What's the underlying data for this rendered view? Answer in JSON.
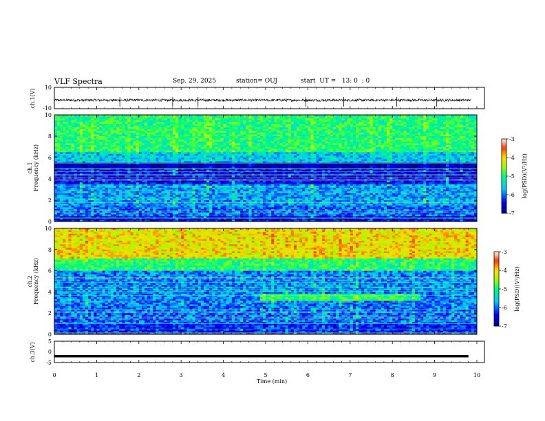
{
  "header": {
    "title": "VLF Spectra",
    "date": "Sep. 29, 2025",
    "station": "station= OUJ",
    "start": "start  UT =   13: 0  : 0"
  },
  "chart_data": [
    {
      "type": "line",
      "panel": "ch1-waveform",
      "ylabel": "ch.1(V)",
      "ylim": [
        -10,
        10
      ],
      "yticks": [
        "10",
        "-10"
      ],
      "baseline": -2,
      "noise_amplitude": 0.6,
      "spike_times": [
        1.55,
        2.8,
        3.4,
        5.95,
        6.85,
        8.1,
        9.05
      ]
    },
    {
      "type": "heatmap",
      "panel": "ch1-spectrogram",
      "ylabel": "ch.1\nFrequency (kHz)",
      "ylabel_line1": "ch.1",
      "ylabel_line2": "Frequency (kHz)",
      "ylim": [
        0,
        10
      ],
      "yticks": [
        "0",
        "2",
        "4",
        "6",
        "8",
        "10"
      ],
      "xlim": [
        0,
        10
      ],
      "log_psd_bands": [
        {
          "f_from": 0.0,
          "f_to": 0.5,
          "level": -6.5
        },
        {
          "f_from": 0.5,
          "f_to": 1.5,
          "level": -6.0
        },
        {
          "f_from": 1.5,
          "f_to": 3.5,
          "level": -5.8
        },
        {
          "f_from": 3.5,
          "f_to": 5.0,
          "level": -6.4
        },
        {
          "f_from": 5.0,
          "f_to": 5.5,
          "level": -6.8
        },
        {
          "f_from": 5.5,
          "f_to": 6.5,
          "level": -5.6
        },
        {
          "f_from": 6.5,
          "f_to": 10.0,
          "level": -5.0
        }
      ],
      "colorbar": {
        "label": "log(PSD)(V²/Hz)",
        "ticks": [
          "-3",
          "-4",
          "-5",
          "-6",
          "-7"
        ],
        "range": [
          -7,
          -3
        ]
      }
    },
    {
      "type": "heatmap",
      "panel": "ch2-spectrogram",
      "ylabel": "ch.2\nFrequency (kHz)",
      "ylabel_line1": "ch.2",
      "ylabel_line2": "Frequency (kHz)",
      "ylim": [
        0,
        10
      ],
      "yticks": [
        "0",
        "2",
        "4",
        "6",
        "8",
        "10"
      ],
      "xlim": [
        0,
        10
      ],
      "log_psd_bands": [
        {
          "f_from": 0.0,
          "f_to": 1.0,
          "level": -6.3
        },
        {
          "f_from": 1.0,
          "f_to": 3.0,
          "level": -6.0
        },
        {
          "f_from": 3.0,
          "f_to": 6.0,
          "level": -5.9
        },
        {
          "f_from": 6.0,
          "f_to": 7.2,
          "level": -5.0
        },
        {
          "f_from": 7.2,
          "f_to": 10.0,
          "level": -4.1
        }
      ],
      "emission_band": {
        "t_from": 4.85,
        "t_to": 8.65,
        "f_from": 3.2,
        "f_to": 3.8,
        "level": -5.0
      },
      "colorbar": {
        "label": "log(PSD)(V²/Hz)",
        "ticks": [
          "-3",
          "-4",
          "-5",
          "-6",
          "-7"
        ],
        "range": [
          -7,
          -3
        ]
      }
    },
    {
      "type": "line",
      "panel": "ch3-waveform",
      "ylabel": "ch.3(V)",
      "ylim": [
        -5,
        5
      ],
      "yticks": [
        "5",
        "0",
        "-5"
      ],
      "baseline": -2.0,
      "xlabel": "Time  (min)",
      "xlim": [
        0,
        10
      ],
      "xticks": [
        "0",
        "1",
        "2",
        "3",
        "4",
        "5",
        "6",
        "7",
        "8",
        "9",
        "10"
      ],
      "data_end_time": 9.8
    }
  ]
}
